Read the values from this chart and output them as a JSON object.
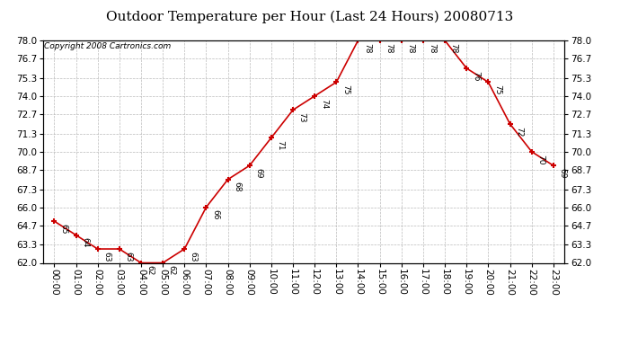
{
  "title": "Outdoor Temperature per Hour (Last 24 Hours) 20080713",
  "copyright": "Copyright 2008 Cartronics.com",
  "hours": [
    "00:00",
    "01:00",
    "02:00",
    "03:00",
    "04:00",
    "05:00",
    "06:00",
    "07:00",
    "08:00",
    "09:00",
    "10:00",
    "11:00",
    "12:00",
    "13:00",
    "14:00",
    "15:00",
    "16:00",
    "17:00",
    "18:00",
    "19:00",
    "20:00",
    "21:00",
    "22:00",
    "23:00"
  ],
  "temps": [
    65,
    64,
    63,
    63,
    62,
    62,
    63,
    66,
    68,
    69,
    71,
    73,
    74,
    75,
    78,
    78,
    78,
    78,
    78,
    76,
    75,
    72,
    70,
    69
  ],
  "ylim_min": 62.0,
  "ylim_max": 78.0,
  "yticks": [
    62.0,
    63.3,
    64.7,
    66.0,
    67.3,
    68.7,
    70.0,
    71.3,
    72.7,
    74.0,
    75.3,
    76.7,
    78.0
  ],
  "line_color": "#cc0000",
  "marker": "+",
  "marker_color": "#cc0000",
  "bg_color": "#ffffff",
  "grid_color": "#bbbbbb",
  "title_fontsize": 11,
  "copyright_fontsize": 6.5,
  "label_fontsize": 6.5,
  "tick_fontsize": 7.5
}
